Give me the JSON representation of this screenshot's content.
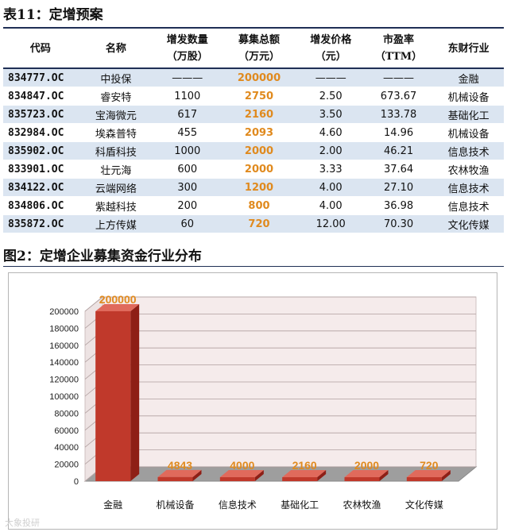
{
  "table": {
    "title": "表11：定增预案",
    "headers": [
      [
        "代码",
        ""
      ],
      [
        "名称",
        ""
      ],
      [
        "增发数量",
        "（万股）"
      ],
      [
        "募集总额",
        "（万元）"
      ],
      [
        "增发价格",
        "（元）"
      ],
      [
        "市盈率",
        "（TTM）"
      ],
      [
        "东财行业",
        ""
      ]
    ],
    "rows": [
      [
        "834777.OC",
        "中投保",
        "———",
        "200000",
        "———",
        "———",
        "金融"
      ],
      [
        "834847.OC",
        "睿安特",
        "1100",
        "2750",
        "2.50",
        "673.67",
        "机械设备"
      ],
      [
        "835723.OC",
        "宝海微元",
        "617",
        "2160",
        "3.50",
        "133.78",
        "基础化工"
      ],
      [
        "832984.OC",
        "埃森普特",
        "455",
        "2093",
        "4.60",
        "14.96",
        "机械设备"
      ],
      [
        "835902.OC",
        "科盾科技",
        "1000",
        "2000",
        "2.00",
        "46.21",
        "信息技术"
      ],
      [
        "833901.OC",
        "壮元海",
        "600",
        "2000",
        "3.33",
        "37.64",
        "农林牧渔"
      ],
      [
        "834122.OC",
        "云端网络",
        "300",
        "1200",
        "4.00",
        "27.10",
        "信息技术"
      ],
      [
        "834806.OC",
        "紫越科技",
        "200",
        "800",
        "4.00",
        "36.98",
        "信息技术"
      ],
      [
        "835872.OC",
        "上方传媒",
        "60",
        "720",
        "12.00",
        "70.30",
        "文化传媒"
      ]
    ]
  },
  "figure": {
    "title": "图2：定增企业募集资金行业分布"
  },
  "watermark": "大象投研",
  "chart_data": {
    "type": "bar",
    "categories": [
      "金融",
      "机械设备",
      "信息技术",
      "基础化工",
      "农林牧渔",
      "文化传媒"
    ],
    "values": [
      200000,
      4843,
      4000,
      2160,
      2000,
      720
    ],
    "ylim": [
      0,
      200000
    ],
    "yticks": [
      0,
      20000,
      40000,
      60000,
      80000,
      100000,
      120000,
      140000,
      160000,
      180000,
      200000
    ],
    "grid": true,
    "legend": "none",
    "colors": {
      "bar": "#c0392b",
      "bar_side": "#8e1f16",
      "bar_top": "#e06a5c",
      "label": "#e08a1e",
      "wall": "#f5ebeb",
      "grid": "#b0a0a0"
    }
  },
  "colors": {
    "header_rule": "#1f2f55",
    "row_stripe": "#dbe5f1",
    "amount": "#e08a1e"
  }
}
